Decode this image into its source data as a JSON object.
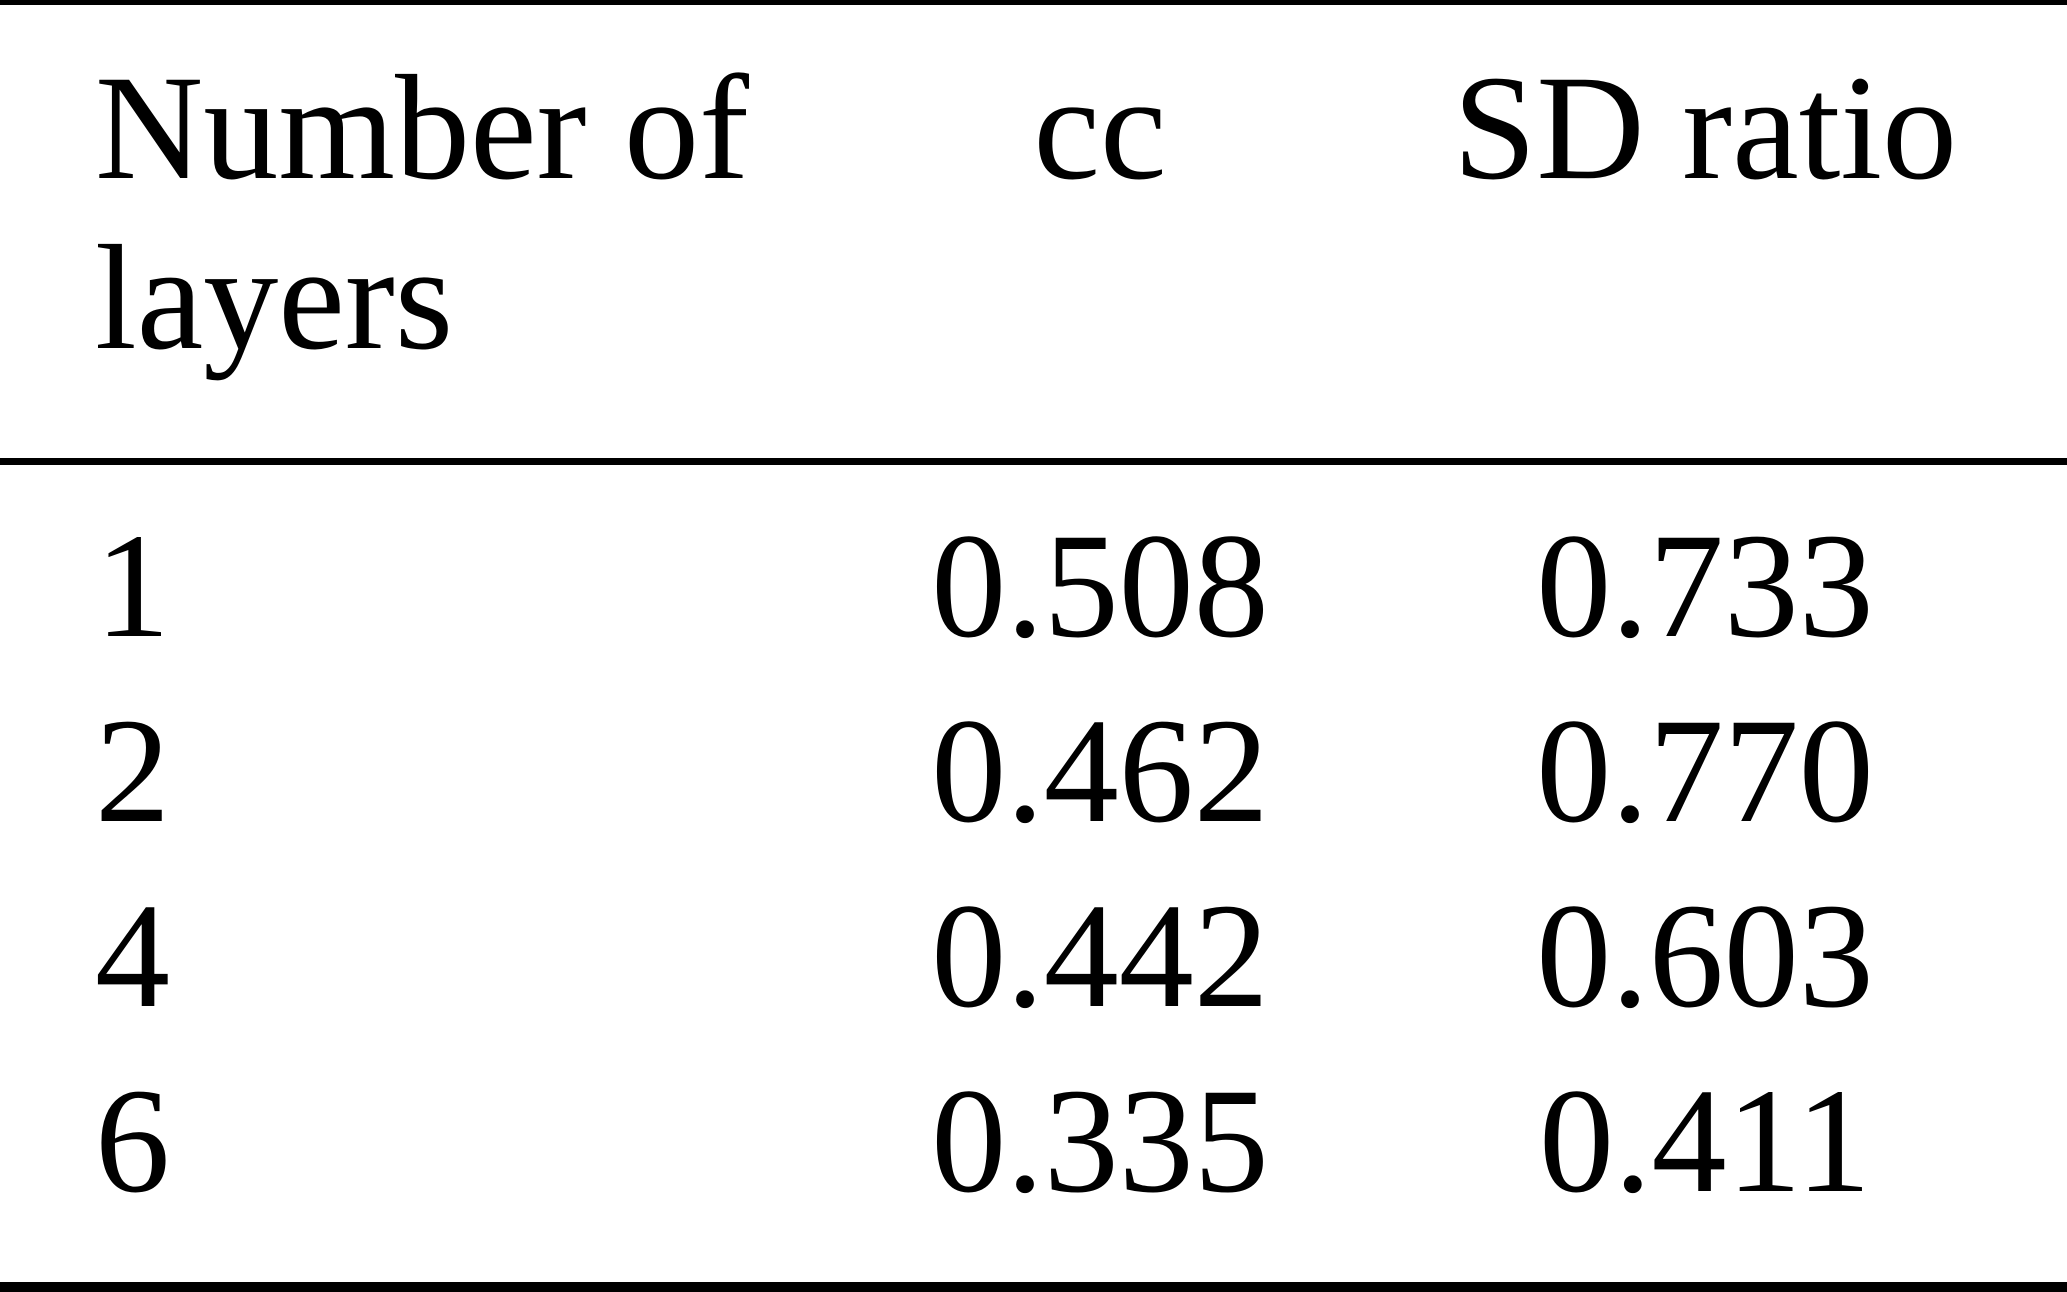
{
  "page": {
    "background_color": "#ffffff",
    "text_color": "#000000"
  },
  "table": {
    "headers": {
      "layers": "Number of layers",
      "cc": "cc",
      "sd_ratio": "SD ratio"
    },
    "rows": [
      {
        "layers": "1",
        "cc": "0.508",
        "sd_ratio": "0.733"
      },
      {
        "layers": "2",
        "cc": "0.462",
        "sd_ratio": "0.770"
      },
      {
        "layers": "4",
        "cc": "0.442",
        "sd_ratio": "0.603"
      },
      {
        "layers": "6",
        "cc": "0.335",
        "sd_ratio": "0.411"
      }
    ]
  },
  "chart_data": {
    "type": "table",
    "columns": [
      "Number of layers",
      "cc",
      "SD ratio"
    ],
    "rows": [
      [
        1,
        0.508,
        0.733
      ],
      [
        2,
        0.462,
        0.77
      ],
      [
        4,
        0.442,
        0.603
      ],
      [
        6,
        0.335,
        0.411
      ]
    ]
  }
}
